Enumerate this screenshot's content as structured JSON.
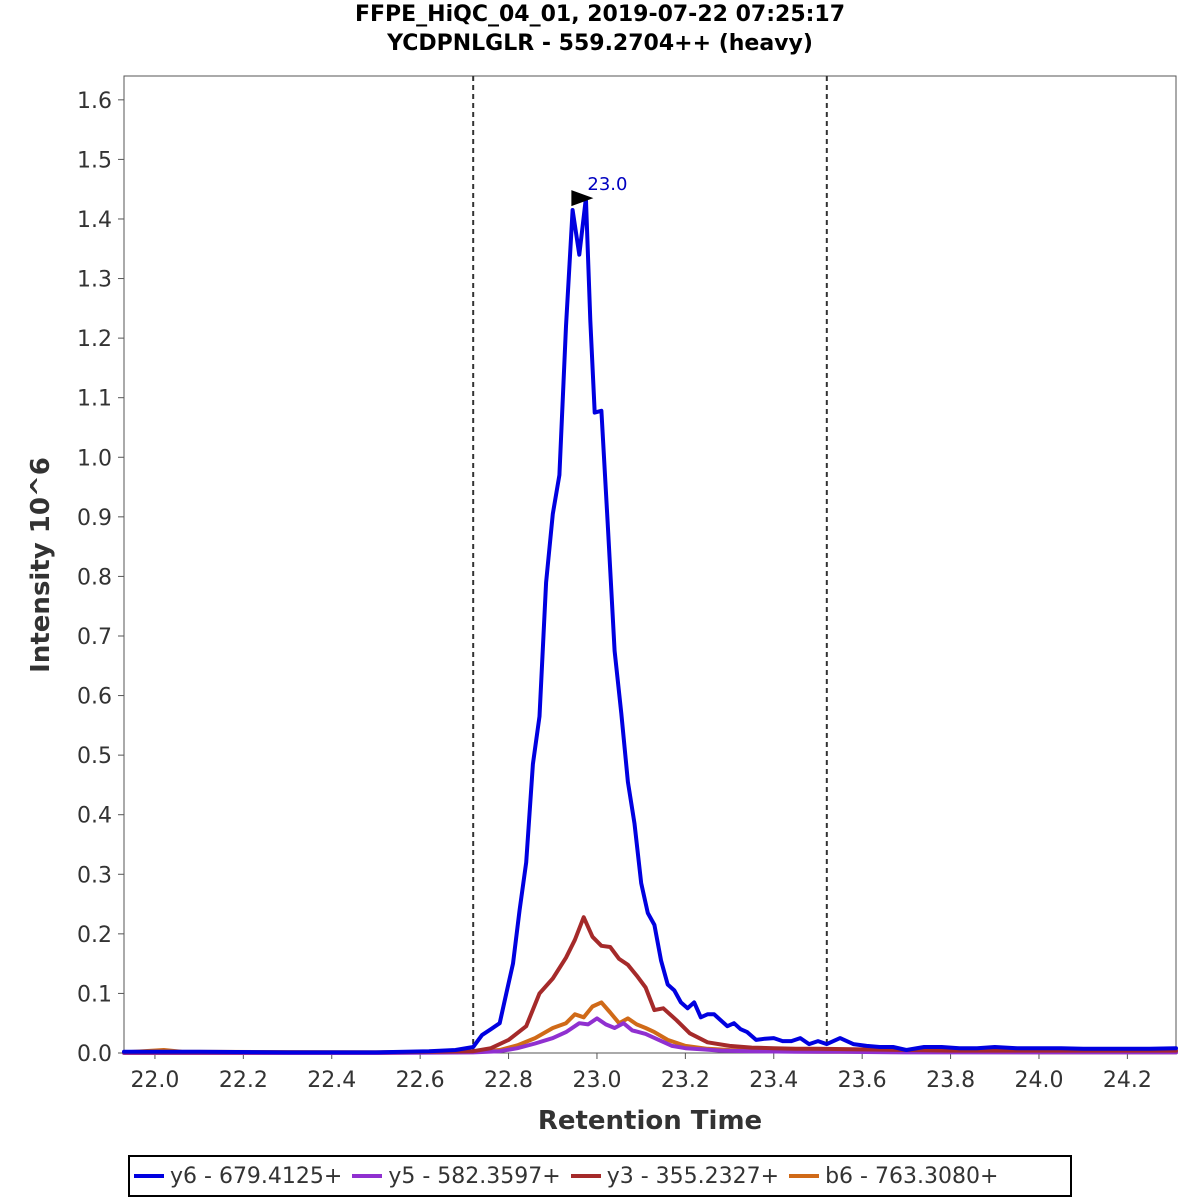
{
  "chart_data": {
    "type": "line",
    "title": "FFPE_HiQC_04_01, 2019-07-22 07:25:17",
    "subtitle": "YCDPNLGLR - 559.2704++ (heavy)",
    "xlabel": "Retention Time",
    "ylabel": "Intensity 10^6",
    "xlim": [
      21.93,
      24.31
    ],
    "ylim": [
      0,
      1.64
    ],
    "xticks": [
      "22.0",
      "22.2",
      "22.4",
      "22.6",
      "22.8",
      "23.0",
      "23.2",
      "23.4",
      "23.6",
      "23.8",
      "24.0",
      "24.2"
    ],
    "yticks": [
      "0.0",
      "0.1",
      "0.2",
      "0.3",
      "0.4",
      "0.5",
      "0.6",
      "0.7",
      "0.8",
      "0.9",
      "1.0",
      "1.1",
      "1.2",
      "1.3",
      "1.4",
      "1.5",
      "1.6"
    ],
    "boundaries": [
      22.72,
      23.52
    ],
    "peak_annotation": {
      "label": "23.0",
      "x": 23.01,
      "y": 1.435
    },
    "legend_position": "bottom",
    "series": [
      {
        "name": "y6 - 679.4125+",
        "color": "#0000e0",
        "x": [
          21.93,
          22.1,
          22.3,
          22.5,
          22.62,
          22.68,
          22.72,
          22.74,
          22.76,
          22.78,
          22.795,
          22.81,
          22.825,
          22.84,
          22.855,
          22.87,
          22.885,
          22.9,
          22.915,
          22.93,
          22.945,
          22.96,
          22.975,
          22.985,
          22.995,
          23.01,
          23.025,
          23.04,
          23.055,
          23.07,
          23.085,
          23.1,
          23.115,
          23.13,
          23.145,
          23.16,
          23.175,
          23.19,
          23.205,
          23.22,
          23.235,
          23.25,
          23.265,
          23.28,
          23.295,
          23.31,
          23.325,
          23.34,
          23.36,
          23.38,
          23.4,
          23.42,
          23.44,
          23.46,
          23.48,
          23.5,
          23.52,
          23.55,
          23.58,
          23.61,
          23.64,
          23.67,
          23.7,
          23.74,
          23.78,
          23.82,
          23.86,
          23.9,
          23.95,
          24.0,
          24.05,
          24.1,
          24.15,
          24.2,
          24.25,
          24.31
        ],
        "y": [
          0.002,
          0.002,
          0.001,
          0.001,
          0.003,
          0.005,
          0.01,
          0.03,
          0.04,
          0.05,
          0.1,
          0.15,
          0.24,
          0.32,
          0.485,
          0.565,
          0.79,
          0.905,
          0.97,
          1.22,
          1.415,
          1.34,
          1.435,
          1.23,
          1.075,
          1.078,
          0.88,
          0.675,
          0.57,
          0.455,
          0.385,
          0.285,
          0.235,
          0.215,
          0.155,
          0.115,
          0.105,
          0.085,
          0.075,
          0.085,
          0.06,
          0.065,
          0.065,
          0.055,
          0.045,
          0.05,
          0.04,
          0.035,
          0.022,
          0.024,
          0.025,
          0.02,
          0.02,
          0.025,
          0.015,
          0.02,
          0.015,
          0.025,
          0.015,
          0.012,
          0.01,
          0.01,
          0.005,
          0.01,
          0.01,
          0.008,
          0.008,
          0.01,
          0.008,
          0.008,
          0.008,
          0.007,
          0.007,
          0.007,
          0.007,
          0.008
        ]
      },
      {
        "name": "y5 - 582.3597+",
        "color": "#9030d0",
        "x": [
          21.93,
          22.5,
          22.72,
          22.78,
          22.82,
          22.86,
          22.9,
          22.93,
          22.96,
          22.98,
          23.0,
          23.02,
          23.04,
          23.06,
          23.08,
          23.11,
          23.14,
          23.17,
          23.2,
          23.24,
          23.28,
          23.35,
          23.45,
          23.55,
          23.7,
          24.0,
          24.31
        ],
        "y": [
          0.0,
          0.0,
          0.001,
          0.003,
          0.008,
          0.016,
          0.025,
          0.035,
          0.05,
          0.048,
          0.058,
          0.048,
          0.042,
          0.05,
          0.038,
          0.032,
          0.022,
          0.012,
          0.008,
          0.006,
          0.004,
          0.003,
          0.002,
          0.002,
          0.001,
          0.001,
          0.001
        ]
      },
      {
        "name": "y3 - 355.2327+",
        "color": "#a52a2a",
        "x": [
          21.93,
          22.5,
          22.72,
          22.76,
          22.8,
          22.84,
          22.87,
          22.9,
          22.93,
          22.95,
          22.97,
          22.99,
          23.01,
          23.03,
          23.05,
          23.07,
          23.09,
          23.11,
          23.13,
          23.15,
          23.18,
          23.21,
          23.25,
          23.3,
          23.35,
          23.4,
          23.45,
          23.5,
          23.6,
          23.7,
          23.8,
          24.0,
          24.31
        ],
        "y": [
          0.001,
          0.001,
          0.003,
          0.008,
          0.022,
          0.045,
          0.1,
          0.125,
          0.16,
          0.19,
          0.228,
          0.195,
          0.18,
          0.178,
          0.158,
          0.148,
          0.13,
          0.11,
          0.072,
          0.075,
          0.055,
          0.033,
          0.018,
          0.012,
          0.009,
          0.008,
          0.007,
          0.007,
          0.006,
          0.005,
          0.004,
          0.004,
          0.004
        ]
      },
      {
        "name": "b6 - 763.3080+",
        "color": "#d06a18",
        "x": [
          21.93,
          22.02,
          22.06,
          22.5,
          22.72,
          22.78,
          22.82,
          22.86,
          22.9,
          22.93,
          22.95,
          22.97,
          22.99,
          23.01,
          23.03,
          23.05,
          23.07,
          23.09,
          23.11,
          23.13,
          23.16,
          23.2,
          23.25,
          23.3,
          23.4,
          23.5,
          23.7,
          24.0,
          24.31
        ],
        "y": [
          0.001,
          0.005,
          0.002,
          0.001,
          0.002,
          0.005,
          0.013,
          0.025,
          0.042,
          0.05,
          0.065,
          0.06,
          0.078,
          0.085,
          0.068,
          0.05,
          0.058,
          0.048,
          0.042,
          0.035,
          0.022,
          0.012,
          0.007,
          0.005,
          0.003,
          0.002,
          0.002,
          0.001,
          0.001
        ]
      }
    ]
  }
}
